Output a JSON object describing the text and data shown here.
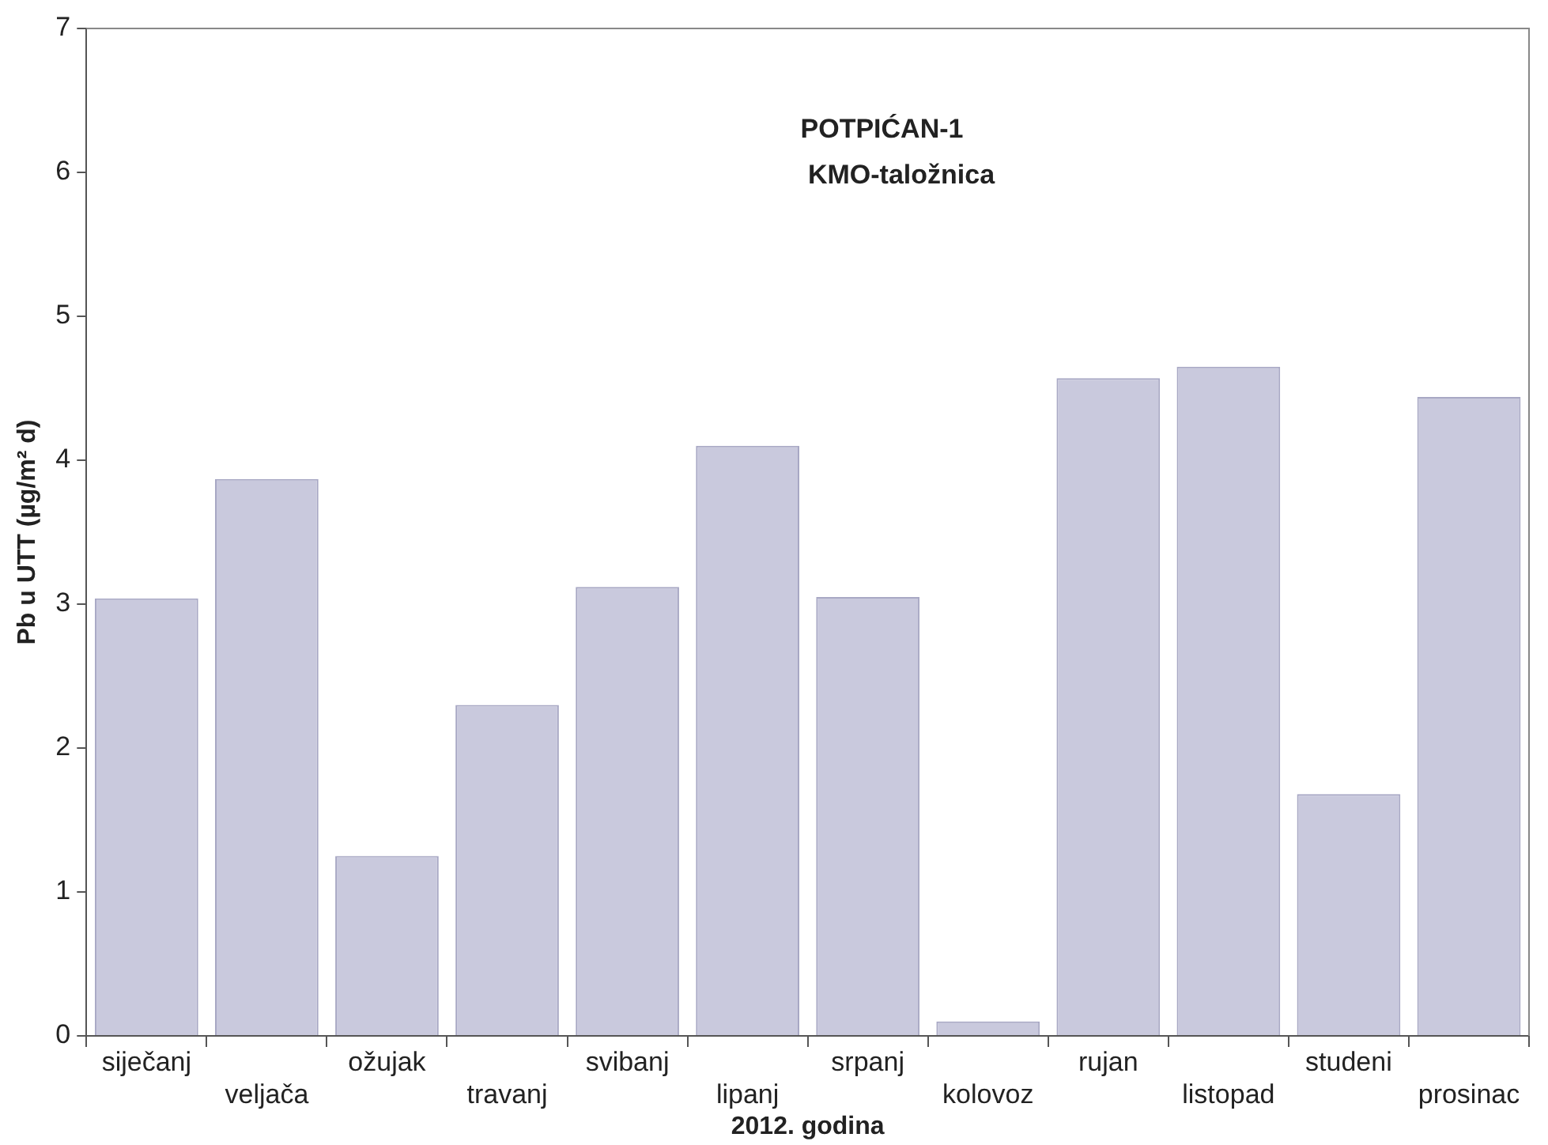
{
  "chart_data": {
    "type": "bar",
    "title": "POTPIĆAN-1\n KMO-taložnica",
    "xlabel": "2012. godina",
    "ylabel": "Pb u UTT (µg/m² d)",
    "categories": [
      "siječanj",
      "veljača",
      "ožujak",
      "travanj",
      "svibanj",
      "lipanj",
      "srpanj",
      "kolovoz",
      "rujan",
      "listopad",
      "studeni",
      "prosinac"
    ],
    "values": [
      3.04,
      3.87,
      1.25,
      2.3,
      3.12,
      4.1,
      3.05,
      0.1,
      4.57,
      4.65,
      1.68,
      4.44
    ],
    "color": "#c9c9dd",
    "ylim": [
      0,
      7
    ],
    "yticks": [
      0,
      1,
      2,
      3,
      4,
      5,
      6,
      7
    ],
    "grid": false,
    "legend": false
  }
}
